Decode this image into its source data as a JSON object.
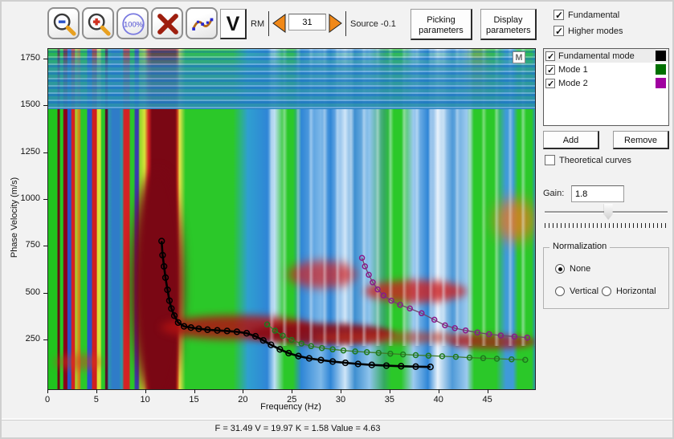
{
  "toolbar": {
    "v_button": "V",
    "rm_label": "RM",
    "rm_value": "31",
    "source_label": "Source -0.1",
    "picking_button": "Picking parameters",
    "display_button": "Display parameters",
    "fundamental_label": "Fundamental",
    "fundamental_checked": true,
    "higher_modes_label": "Higher modes",
    "higher_modes_checked": true,
    "icons": [
      "zoom-out-icon",
      "zoom-in-icon",
      "zoom-100-icon",
      "delete-icon",
      "curve-icon"
    ]
  },
  "mode_list": {
    "items": [
      {
        "label": "Fundamental mode",
        "checked": true,
        "color": "#000000",
        "selected": true
      },
      {
        "label": "Mode 1",
        "checked": true,
        "color": "#007000",
        "selected": false
      },
      {
        "label": "Mode 2",
        "checked": true,
        "color": "#a000a0",
        "selected": false
      }
    ],
    "add_button": "Add",
    "remove_button": "Remove"
  },
  "controls": {
    "theoretical_label": "Theoretical curves",
    "theoretical_checked": false,
    "gain_label": "Gain:",
    "gain_value": "1.8",
    "gain_slider_pos": 0.53,
    "normalization": {
      "title": "Normalization",
      "none_label": "None",
      "none_selected": true,
      "vertical_label": "Vertical",
      "vertical_selected": false,
      "horizontal_label": "Horizontal",
      "horizontal_selected": false
    }
  },
  "plot": {
    "mode_badge": "M"
  },
  "chart_data": {
    "type": "heatmap",
    "title": "Surface-wave dispersion image with picked dispersion curves",
    "xlabel": "Frequency (Hz)",
    "ylabel": "Phase Velocity (m/s)",
    "xlim": [
      0,
      49.8
    ],
    "ylim": [
      -11,
      1806
    ],
    "xticks": [
      0,
      5,
      10,
      15,
      20,
      25,
      30,
      35,
      40,
      45
    ],
    "yticks": [
      250,
      500,
      750,
      1000,
      1250,
      1500,
      1750
    ],
    "grid": false,
    "colormap_hint": [
      "#7a0714",
      "#d42222",
      "#e07818",
      "#d8e23a",
      "#2bc829",
      "#2a9aa8",
      "#2f86d6",
      "#ffffff"
    ],
    "heatmap_note": "High-amplitude (dark red) dispersion energy band descending from ~780 m/s at 12 Hz to ~110 m/s at 39 Hz; strong vertical striping below 14 Hz; blue low-amplitude field with white streaks at higher frequencies; cyan/blue horizontal noise below ~150 m/s.",
    "series": [
      {
        "name": "Fundamental mode",
        "line_color": "#000000",
        "marker_color": "#000000",
        "line_width": 2.6,
        "marker_r": 3.4,
        "points": [
          [
            11.6,
            780
          ],
          [
            11.7,
            705
          ],
          [
            11.85,
            645
          ],
          [
            12.0,
            585
          ],
          [
            12.2,
            520
          ],
          [
            12.4,
            462
          ],
          [
            12.6,
            420
          ],
          [
            12.9,
            382
          ],
          [
            13.3,
            345
          ],
          [
            13.9,
            325
          ],
          [
            14.6,
            318
          ],
          [
            15.4,
            312
          ],
          [
            16.3,
            307
          ],
          [
            17.3,
            303
          ],
          [
            18.3,
            300
          ],
          [
            19.3,
            296
          ],
          [
            20.3,
            288
          ],
          [
            21.2,
            272
          ],
          [
            22.0,
            250
          ],
          [
            22.8,
            226
          ],
          [
            23.7,
            202
          ],
          [
            24.6,
            182
          ],
          [
            25.6,
            166
          ],
          [
            26.7,
            154
          ],
          [
            27.9,
            145
          ],
          [
            29.1,
            137
          ],
          [
            30.4,
            130
          ],
          [
            31.7,
            124
          ],
          [
            33.1,
            119
          ],
          [
            34.6,
            115
          ],
          [
            36.1,
            112
          ],
          [
            37.6,
            110
          ],
          [
            39.1,
            108
          ]
        ]
      },
      {
        "name": "Mode 1",
        "line_color": "#3f7a28",
        "marker_color": "#1d7a1d",
        "line_width": 1.3,
        "marker_r": 3,
        "points": [
          [
            22.4,
            335
          ],
          [
            23.2,
            302
          ],
          [
            24.0,
            275
          ],
          [
            24.9,
            252
          ],
          [
            25.9,
            233
          ],
          [
            26.9,
            219
          ],
          [
            28.0,
            209
          ],
          [
            29.1,
            202
          ],
          [
            30.2,
            196
          ],
          [
            31.4,
            191
          ],
          [
            32.6,
            187
          ],
          [
            33.8,
            183
          ],
          [
            35.0,
            179
          ],
          [
            36.3,
            175
          ],
          [
            37.6,
            171
          ],
          [
            38.9,
            168
          ],
          [
            40.3,
            165
          ],
          [
            41.7,
            162
          ],
          [
            43.1,
            158
          ],
          [
            44.5,
            155
          ],
          [
            45.9,
            152
          ],
          [
            47.4,
            149
          ],
          [
            48.8,
            146
          ]
        ]
      },
      {
        "name": "Mode 2",
        "line_color": "#6b4a66",
        "marker_color": "#8a1a8a",
        "line_width": 1.3,
        "marker_r": 3,
        "points": [
          [
            32.1,
            690
          ],
          [
            32.4,
            645
          ],
          [
            32.8,
            600
          ],
          [
            33.2,
            560
          ],
          [
            33.7,
            522
          ],
          [
            34.3,
            490
          ],
          [
            35.1,
            462
          ],
          [
            36.0,
            440
          ],
          [
            37.0,
            420
          ],
          [
            38.2,
            395
          ],
          [
            39.5,
            360
          ],
          [
            40.6,
            330
          ],
          [
            41.6,
            315
          ],
          [
            42.7,
            303
          ],
          [
            43.9,
            292
          ],
          [
            45.1,
            283
          ],
          [
            46.3,
            276
          ],
          [
            47.7,
            270
          ],
          [
            49.0,
            265
          ]
        ]
      }
    ]
  },
  "status_bar": {
    "text": "F = 31.49 V = 19.97 K = 1.58 Value = 4.63"
  }
}
